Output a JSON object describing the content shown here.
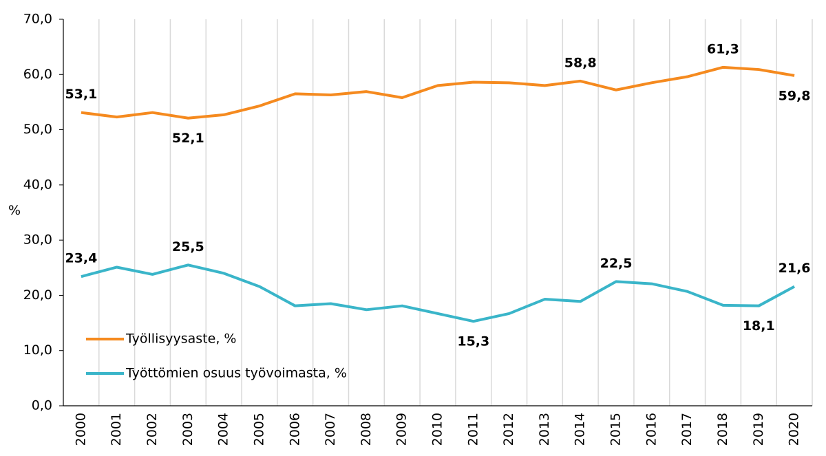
{
  "chart_data": {
    "type": "line",
    "y_label": "%",
    "categories": [
      "2000",
      "2001",
      "2002",
      "2003",
      "2004",
      "2005",
      "2006",
      "2007",
      "2008",
      "2009",
      "2010",
      "2011",
      "2012",
      "2013",
      "2014",
      "2015",
      "2016",
      "2017",
      "2018",
      "2019",
      "2020"
    ],
    "series": [
      {
        "name": "Työllisyysaste, %",
        "color": "#f58a1f",
        "values": [
          53.1,
          52.3,
          53.1,
          52.1,
          52.7,
          54.3,
          56.5,
          56.3,
          56.9,
          55.8,
          58.0,
          58.6,
          58.5,
          58.0,
          58.8,
          57.2,
          58.5,
          59.6,
          61.3,
          60.9,
          59.8
        ],
        "value_labels": [
          "53,1",
          null,
          null,
          "52,1",
          null,
          null,
          null,
          null,
          null,
          null,
          null,
          null,
          null,
          null,
          "58,8",
          null,
          null,
          null,
          "61,3",
          null,
          "59,8"
        ]
      },
      {
        "name": "Työttömien osuus työvoimasta, %",
        "color": "#3ab5c9",
        "values": [
          23.4,
          25.1,
          23.8,
          25.5,
          24.0,
          21.6,
          18.1,
          18.5,
          17.4,
          18.1,
          16.7,
          15.3,
          16.7,
          19.3,
          18.9,
          22.5,
          22.1,
          20.7,
          18.2,
          18.1,
          21.6
        ],
        "value_labels": [
          "23,4",
          null,
          null,
          "25,5",
          null,
          null,
          null,
          null,
          null,
          null,
          null,
          "15,3",
          null,
          null,
          null,
          "22,5",
          null,
          null,
          null,
          "18,1",
          "21,6"
        ]
      }
    ],
    "ylim": [
      0,
      70
    ],
    "yticks": [
      {
        "value": 0,
        "label": "0,0"
      },
      {
        "value": 10,
        "label": "10,0"
      },
      {
        "value": 20,
        "label": "20,0"
      },
      {
        "value": 30,
        "label": "30,0"
      },
      {
        "value": 40,
        "label": "40,0"
      },
      {
        "value": 50,
        "label": "50,0"
      },
      {
        "value": 60,
        "label": "60,0"
      },
      {
        "value": 70,
        "label": "70,0"
      }
    ],
    "grid": "x",
    "legend": "lower left"
  }
}
